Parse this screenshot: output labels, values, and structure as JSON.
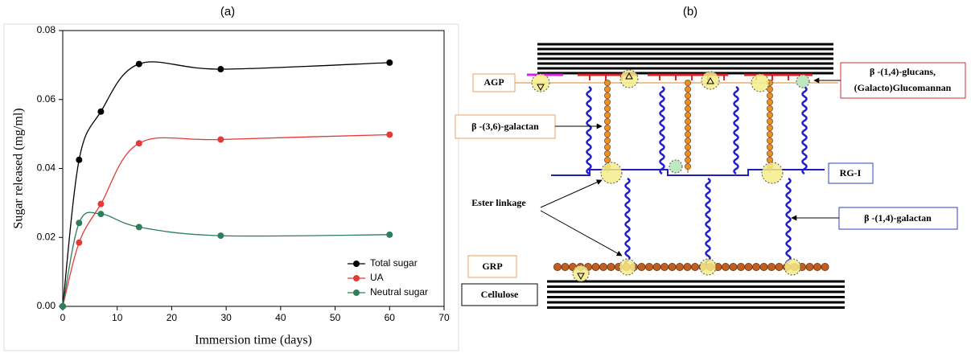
{
  "panels": {
    "a": "(a)",
    "b": "(b)"
  },
  "chart_data": {
    "type": "line",
    "xlabel": "Immersion time (days)",
    "ylabel": "Sugar released (mg/ml)",
    "x": [
      0,
      3,
      7,
      14,
      29,
      60
    ],
    "series": [
      {
        "name": "Total sugar",
        "color": "#000000",
        "values": [
          0,
          0.0425,
          0.0565,
          0.0703,
          0.0688,
          0.0707
        ]
      },
      {
        "name": "UA",
        "color": "#e53935",
        "values": [
          0,
          0.0185,
          0.0297,
          0.0473,
          0.0484,
          0.0498
        ]
      },
      {
        "name": "Neutral sugar",
        "color": "#2e7d5b",
        "values": [
          0,
          0.0242,
          0.0268,
          0.023,
          0.0205,
          0.0208
        ]
      }
    ],
    "xlim": [
      0,
      70
    ],
    "xticks": [
      0,
      10,
      20,
      30,
      40,
      50,
      60,
      70
    ],
    "ylim": [
      0,
      0.08
    ],
    "yticks": [
      {
        "value": 0,
        "label": "0.00"
      },
      0.02,
      0.04,
      0.06,
      0.08
    ],
    "legend": "lower right"
  },
  "diagram": {
    "agp": "AGP",
    "glucans": [
      "β -(1,4)-glucans,",
      "(Galacto)Glucomannan"
    ],
    "galactan36": "β -(3,6)-galactan",
    "rg1": "RG-I",
    "ester": "Ester linkage",
    "galactan14": "β -(1,4)-galactan",
    "grp": "GRP",
    "cellulose": "Cellulose"
  }
}
